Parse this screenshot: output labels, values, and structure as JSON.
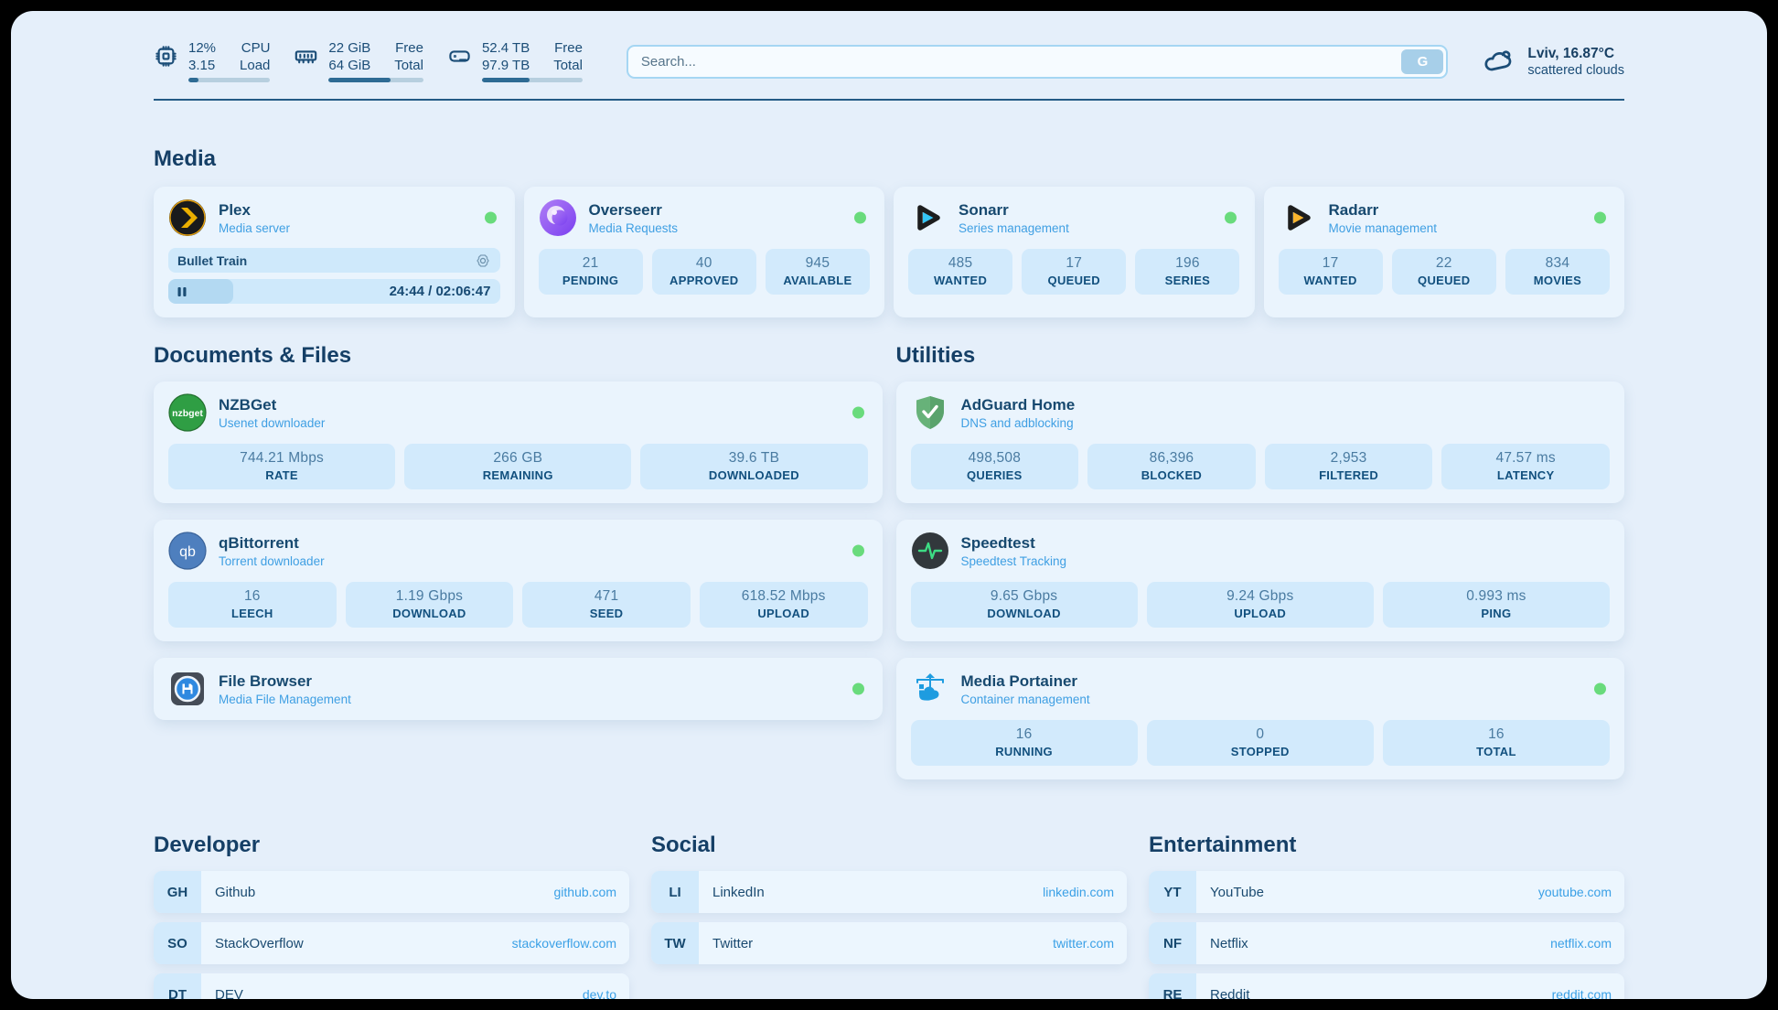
{
  "topbar": {
    "cpu": {
      "value_top": "12%",
      "value_bottom": "3.15",
      "label_top": "CPU",
      "label_bottom": "Load",
      "progress_pct": 12
    },
    "memory": {
      "value_top": "22 GiB",
      "value_bottom": "64 GiB",
      "label_top": "Free",
      "label_bottom": "Total",
      "progress_pct": 65
    },
    "disk": {
      "value_top": "52.4 TB",
      "value_bottom": "97.9 TB",
      "label_top": "Free",
      "label_bottom": "Total",
      "progress_pct": 47
    },
    "search": {
      "placeholder": "Search...",
      "button_label": "G"
    },
    "weather": {
      "location": "Lviv, 16.87°C",
      "condition": "scattered clouds"
    }
  },
  "sections": {
    "media": "Media",
    "documents": "Documents & Files",
    "utilities": "Utilities",
    "developer": "Developer",
    "social": "Social",
    "entertainment": "Entertainment"
  },
  "apps": {
    "plex": {
      "name": "Plex",
      "subtitle": "Media server",
      "now_playing": "Bullet Train",
      "time": "24:44 / 02:06:47",
      "progress_pct": 19.5
    },
    "overseerr": {
      "name": "Overseerr",
      "subtitle": "Media Requests",
      "stats": [
        {
          "value": "21",
          "label": "PENDING"
        },
        {
          "value": "40",
          "label": "APPROVED"
        },
        {
          "value": "945",
          "label": "AVAILABLE"
        }
      ]
    },
    "sonarr": {
      "name": "Sonarr",
      "subtitle": "Series management",
      "stats": [
        {
          "value": "485",
          "label": "WANTED"
        },
        {
          "value": "17",
          "label": "QUEUED"
        },
        {
          "value": "196",
          "label": "SERIES"
        }
      ]
    },
    "radarr": {
      "name": "Radarr",
      "subtitle": "Movie management",
      "stats": [
        {
          "value": "17",
          "label": "WANTED"
        },
        {
          "value": "22",
          "label": "QUEUED"
        },
        {
          "value": "834",
          "label": "MOVIES"
        }
      ]
    },
    "nzbget": {
      "name": "NZBGet",
      "subtitle": "Usenet downloader",
      "stats": [
        {
          "value": "744.21 Mbps",
          "label": "RATE"
        },
        {
          "value": "266 GB",
          "label": "REMAINING"
        },
        {
          "value": "39.6 TB",
          "label": "DOWNLOADED"
        }
      ]
    },
    "qbittorrent": {
      "name": "qBittorrent",
      "subtitle": "Torrent downloader",
      "stats": [
        {
          "value": "16",
          "label": "LEECH"
        },
        {
          "value": "1.19 Gbps",
          "label": "DOWNLOAD"
        },
        {
          "value": "471",
          "label": "SEED"
        },
        {
          "value": "618.52 Mbps",
          "label": "UPLOAD"
        }
      ]
    },
    "filebrowser": {
      "name": "File Browser",
      "subtitle": "Media File Management"
    },
    "adguard": {
      "name": "AdGuard Home",
      "subtitle": "DNS and adblocking",
      "stats": [
        {
          "value": "498,508",
          "label": "QUERIES"
        },
        {
          "value": "86,396",
          "label": "BLOCKED"
        },
        {
          "value": "2,953",
          "label": "FILTERED"
        },
        {
          "value": "47.57 ms",
          "label": "LATENCY"
        }
      ]
    },
    "speedtest": {
      "name": "Speedtest",
      "subtitle": "Speedtest Tracking",
      "stats": [
        {
          "value": "9.65 Gbps",
          "label": "DOWNLOAD"
        },
        {
          "value": "9.24 Gbps",
          "label": "UPLOAD"
        },
        {
          "value": "0.993 ms",
          "label": "PING"
        }
      ]
    },
    "portainer": {
      "name": "Media Portainer",
      "subtitle": "Container management",
      "stats": [
        {
          "value": "16",
          "label": "RUNNING"
        },
        {
          "value": "0",
          "label": "STOPPED"
        },
        {
          "value": "16",
          "label": "TOTAL"
        }
      ]
    }
  },
  "bookmarks": {
    "developer": [
      {
        "abbr": "GH",
        "name": "Github",
        "url": "github.com"
      },
      {
        "abbr": "SO",
        "name": "StackOverflow",
        "url": "stackoverflow.com"
      },
      {
        "abbr": "DT",
        "name": "DEV",
        "url": "dev.to"
      }
    ],
    "social": [
      {
        "abbr": "LI",
        "name": "LinkedIn",
        "url": "linkedin.com"
      },
      {
        "abbr": "TW",
        "name": "Twitter",
        "url": "twitter.com"
      }
    ],
    "entertainment": [
      {
        "abbr": "YT",
        "name": "YouTube",
        "url": "youtube.com"
      },
      {
        "abbr": "NF",
        "name": "Netflix",
        "url": "netflix.com"
      },
      {
        "abbr": "RE",
        "name": "Reddit",
        "url": "reddit.com"
      }
    ]
  },
  "colors": {
    "accent": "#3f9fe3",
    "navy": "#17496f",
    "status_online": "#69db7c",
    "panel_bg": "#e5effa"
  }
}
